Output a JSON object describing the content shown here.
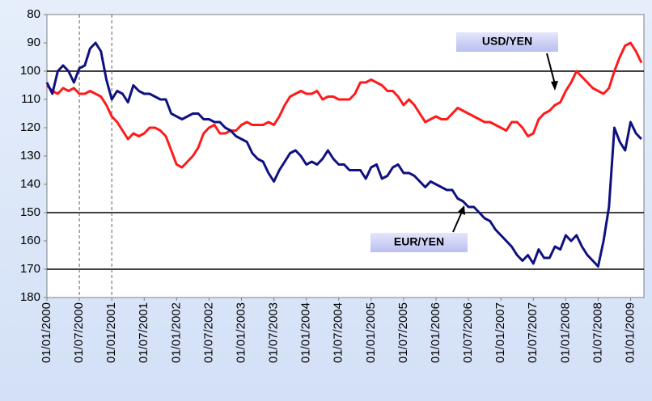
{
  "chart_data": {
    "type": "line",
    "x": [
      "01/01/2000",
      "01/02/2000",
      "01/03/2000",
      "01/04/2000",
      "01/05/2000",
      "01/06/2000",
      "01/07/2000",
      "01/08/2000",
      "01/09/2000",
      "01/10/2000",
      "01/11/2000",
      "01/12/2000",
      "01/01/2001",
      "01/02/2001",
      "01/03/2001",
      "01/04/2001",
      "01/05/2001",
      "01/06/2001",
      "01/07/2001",
      "01/08/2001",
      "01/09/2001",
      "01/10/2001",
      "01/11/2001",
      "01/12/2001",
      "01/01/2002",
      "01/02/2002",
      "01/03/2002",
      "01/04/2002",
      "01/05/2002",
      "01/06/2002",
      "01/07/2002",
      "01/08/2002",
      "01/09/2002",
      "01/10/2002",
      "01/11/2002",
      "01/12/2002",
      "01/01/2003",
      "01/02/2003",
      "01/03/2003",
      "01/04/2003",
      "01/05/2003",
      "01/06/2003",
      "01/07/2003",
      "01/08/2003",
      "01/09/2003",
      "01/10/2003",
      "01/11/2003",
      "01/12/2003",
      "01/01/2004",
      "01/02/2004",
      "01/03/2004",
      "01/04/2004",
      "01/05/2004",
      "01/06/2004",
      "01/07/2004",
      "01/08/2004",
      "01/09/2004",
      "01/10/2004",
      "01/11/2004",
      "01/12/2004",
      "01/01/2005",
      "01/02/2005",
      "01/03/2005",
      "01/04/2005",
      "01/05/2005",
      "01/06/2005",
      "01/07/2005",
      "01/08/2005",
      "01/09/2005",
      "01/10/2005",
      "01/11/2005",
      "01/12/2005",
      "01/01/2006",
      "01/02/2006",
      "01/03/2006",
      "01/04/2006",
      "01/05/2006",
      "01/06/2006",
      "01/07/2006",
      "01/08/2006",
      "01/09/2006",
      "01/10/2006",
      "01/11/2006",
      "01/12/2006",
      "01/01/2007",
      "01/02/2007",
      "01/03/2007",
      "01/04/2007",
      "01/05/2007",
      "01/06/2007",
      "01/07/2007",
      "01/08/2007",
      "01/09/2007",
      "01/10/2007",
      "01/11/2007",
      "01/12/2007",
      "01/01/2008",
      "01/02/2008",
      "01/03/2008",
      "01/04/2008",
      "01/05/2008",
      "01/06/2008",
      "01/07/2008",
      "01/08/2008",
      "01/09/2008",
      "01/10/2008",
      "01/11/2008",
      "01/12/2008",
      "01/01/2009",
      "01/02/2009",
      "01/03/2009"
    ],
    "series": [
      {
        "name": "USD/YEN",
        "color": "#ff1a1a",
        "values": [
          105,
          107,
          108,
          106,
          107,
          106,
          108,
          108,
          107,
          108,
          109,
          112,
          116,
          118,
          121,
          124,
          122,
          123,
          122,
          120,
          120,
          121,
          123,
          128,
          133,
          134,
          132,
          130,
          127,
          122,
          120,
          119,
          122,
          122,
          121,
          121,
          119,
          118,
          119,
          119,
          119,
          118,
          119,
          116,
          112,
          109,
          108,
          107,
          108,
          108,
          107,
          110,
          109,
          109,
          110,
          110,
          110,
          108,
          104,
          104,
          103,
          104,
          105,
          107,
          107,
          109,
          112,
          110,
          112,
          115,
          118,
          117,
          116,
          117,
          117,
          115,
          113,
          114,
          115,
          116,
          117,
          118,
          118,
          119,
          120,
          121,
          118,
          118,
          120,
          123,
          122,
          117,
          115,
          114,
          112,
          111,
          107,
          104,
          100,
          102,
          104,
          106,
          107,
          108,
          106,
          100,
          95,
          91,
          90,
          93,
          97
        ]
      },
      {
        "name": "EUR/YEN",
        "color": "#101080",
        "values": [
          104,
          108,
          100,
          98,
          100,
          104,
          99,
          98,
          92,
          90,
          93,
          103,
          110,
          107,
          108,
          111,
          105,
          107,
          108,
          108,
          109,
          110,
          110,
          115,
          116,
          117,
          116,
          115,
          115,
          117,
          117,
          118,
          118,
          120,
          121,
          123,
          124,
          125,
          129,
          131,
          132,
          136,
          139,
          135,
          132,
          129,
          128,
          130,
          133,
          132,
          133,
          131,
          128,
          131,
          133,
          133,
          135,
          135,
          135,
          138,
          134,
          133,
          138,
          137,
          134,
          133,
          136,
          136,
          137,
          139,
          141,
          139,
          140,
          141,
          142,
          142,
          145,
          146,
          148,
          148,
          150,
          152,
          153,
          156,
          158,
          160,
          162,
          165,
          167,
          165,
          168,
          163,
          166,
          166,
          162,
          163,
          158,
          160,
          158,
          162,
          165,
          167,
          169,
          160,
          148,
          120,
          125,
          128,
          118,
          122,
          124
        ]
      }
    ],
    "xlim": [
      "01/01/2000",
      "15/03/2009"
    ],
    "xticks": [
      "01/01/2000",
      "01/07/2000",
      "01/01/2001",
      "01/07/2001",
      "01/01/2002",
      "01/07/2002",
      "01/01/2003",
      "01/07/2003",
      "01/01/2004",
      "01/07/2004",
      "01/01/2005",
      "01/07/2005",
      "01/01/2006",
      "01/07/2006",
      "01/01/2007",
      "01/07/2007",
      "01/01/2008",
      "01/07/2008",
      "01/01/2009"
    ],
    "ylim": [
      180,
      80
    ],
    "yticks": [
      80,
      90,
      100,
      110,
      120,
      130,
      140,
      150,
      160,
      170,
      180
    ],
    "hlines": [
      100,
      150,
      170
    ],
    "vlines": [
      "01/07/2000",
      "01/01/2001"
    ]
  }
}
